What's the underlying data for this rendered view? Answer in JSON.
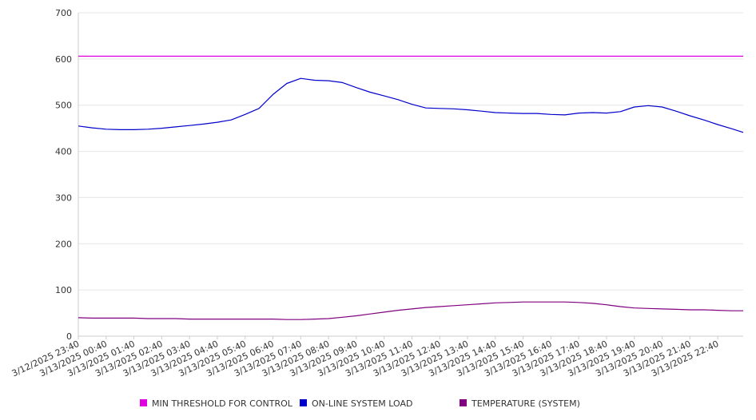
{
  "chart_data": {
    "type": "line",
    "title": "",
    "xlabel": "",
    "ylabel": "",
    "ylim": [
      0,
      700
    ],
    "yticks": [
      0,
      100,
      200,
      300,
      400,
      500,
      600,
      700
    ],
    "grid": true,
    "legend_position": "bottom",
    "x_tick_labels": [
      "3/12/2025 23:40",
      "3/13/2025 00:40",
      "3/13/2025 01:40",
      "3/13/2025 02:40",
      "3/13/2025 03:40",
      "3/13/2025 04:40",
      "3/13/2025 05:40",
      "3/13/2025 06:40",
      "3/13/2025 07:40",
      "3/13/2025 08:40",
      "3/13/2025 09:40",
      "3/13/2025 10:40",
      "3/13/2025 11:40",
      "3/13/2025 12:40",
      "3/13/2025 13:40",
      "3/13/2025 14:40",
      "3/13/2025 15:40",
      "3/13/2025 16:40",
      "3/13/2025 17:40",
      "3/13/2025 18:40",
      "3/13/2025 19:40",
      "3/13/2025 20:40",
      "3/13/2025 21:40",
      "3/13/2025 22:40"
    ],
    "x": [
      "3/12/2025 23:40",
      "3/13/2025 00:10",
      "3/13/2025 00:40",
      "3/13/2025 01:10",
      "3/13/2025 01:40",
      "3/13/2025 02:10",
      "3/13/2025 02:40",
      "3/13/2025 03:10",
      "3/13/2025 03:40",
      "3/13/2025 04:10",
      "3/13/2025 04:40",
      "3/13/2025 05:10",
      "3/13/2025 05:40",
      "3/13/2025 06:10",
      "3/13/2025 06:40",
      "3/13/2025 07:10",
      "3/13/2025 07:40",
      "3/13/2025 08:10",
      "3/13/2025 08:40",
      "3/13/2025 09:10",
      "3/13/2025 09:40",
      "3/13/2025 10:10",
      "3/13/2025 10:40",
      "3/13/2025 11:10",
      "3/13/2025 11:40",
      "3/13/2025 12:10",
      "3/13/2025 12:40",
      "3/13/2025 13:10",
      "3/13/2025 13:40",
      "3/13/2025 14:10",
      "3/13/2025 14:40",
      "3/13/2025 15:10",
      "3/13/2025 15:40",
      "3/13/2025 16:10",
      "3/13/2025 16:40",
      "3/13/2025 17:10",
      "3/13/2025 17:40",
      "3/13/2025 18:10",
      "3/13/2025 18:40",
      "3/13/2025 19:10",
      "3/13/2025 19:40",
      "3/13/2025 20:10",
      "3/13/2025 20:40",
      "3/13/2025 21:10",
      "3/13/2025 21:40",
      "3/13/2025 22:10",
      "3/13/2025 22:40",
      "3/13/2025 23:10",
      "3/13/2025 23:35"
    ],
    "series": [
      {
        "name": "MIN THRESHOLD FOR CONTROL",
        "color": "#e000e0",
        "values": [
          606,
          606,
          606,
          606,
          606,
          606,
          606,
          606,
          606,
          606,
          606,
          606,
          606,
          606,
          606,
          606,
          606,
          606,
          606,
          606,
          606,
          606,
          606,
          606,
          606,
          606,
          606,
          606,
          606,
          606,
          606,
          606,
          606,
          606,
          606,
          606,
          606,
          606,
          606,
          606,
          606,
          606,
          606,
          606,
          606,
          606,
          606,
          606,
          606
        ]
      },
      {
        "name": "ON-LINE SYSTEM LOAD",
        "color": "#0000cc",
        "values": [
          455,
          451,
          448,
          447,
          447,
          448,
          450,
          453,
          456,
          459,
          463,
          468,
          480,
          493,
          523,
          547,
          558,
          554,
          553,
          549,
          538,
          528,
          520,
          512,
          502,
          494,
          493,
          492,
          490,
          487,
          484,
          483,
          482,
          482,
          480,
          479,
          483,
          484,
          483,
          486,
          496,
          499,
          496,
          487,
          477,
          468,
          458,
          449,
          441
        ]
      },
      {
        "name": "TEMPERATURE (SYSTEM)",
        "color": "#800080",
        "values": [
          40,
          39,
          39,
          39,
          39,
          38,
          38,
          38,
          37,
          37,
          37,
          37,
          37,
          37,
          37,
          36,
          36,
          37,
          38,
          41,
          44,
          48,
          52,
          56,
          59,
          62,
          64,
          66,
          68,
          70,
          72,
          73,
          74,
          74,
          74,
          74,
          73,
          71,
          68,
          64,
          61,
          60,
          59,
          58,
          57,
          57,
          56,
          55,
          55
        ]
      }
    ]
  }
}
